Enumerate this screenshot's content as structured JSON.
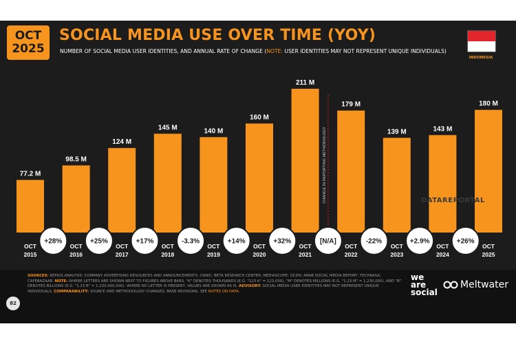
{
  "header": {
    "badge_line1": "OCT",
    "badge_line2": "2025",
    "title": "SOCIAL MEDIA USE OVER TIME (YOY)",
    "subtitle_pre": "NUMBER OF SOCIAL MEDIA USER IDENTITIES, AND ANNUAL RATE OF CHANGE (",
    "subtitle_note": "NOTE:",
    "subtitle_post": " USER IDENTITIES MAY NOT REPRESENT UNIQUE INDIVIDUALS)",
    "country": "INDONESIA"
  },
  "colors": {
    "accent": "#f7941d",
    "background": "#1c1c1c",
    "flag_red": "#e3262b"
  },
  "chart_data": {
    "type": "bar",
    "categories": [
      "OCT 2015",
      "OCT 2016",
      "OCT 2017",
      "OCT 2018",
      "OCT 2019",
      "OCT 2020",
      "OCT 2021",
      "OCT 2022",
      "OCT 2023",
      "OCT 2024",
      "OCT 2025"
    ],
    "values": [
      77.2,
      98.5,
      124,
      145,
      140,
      160,
      211,
      179,
      139,
      143,
      180
    ],
    "value_labels": [
      "77.2 M",
      "98.5 M",
      "124 M",
      "145 M",
      "140 M",
      "160 M",
      "211 M",
      "179 M",
      "139 M",
      "143 M",
      "180 M"
    ],
    "yoy_changes": [
      "+28%",
      "+25%",
      "+17%",
      "-3.3%",
      "+14%",
      "+32%",
      "[N/A]",
      "-22%",
      "+2.9%",
      "+26%"
    ],
    "ylim": [
      0,
      211
    ],
    "annotation": "CHANGE IN REPORTING METHODOLOGY",
    "grid": false,
    "legend": "none"
  },
  "watermark": "DATAREPORTAL",
  "footer": {
    "page_number": "82",
    "sources_label": "SOURCES:",
    "sources_text": " KEPIOS ANALYSIS; COMPANY ADVERTISING RESOURCES AND ANNOUNCEMENTS; CNNIC; BETA RESEARCH CENTER; MEDIASCOPE; OCDH; ARAB SOCIAL MEDIA REPORT; TECHRASA; CAFEBAZAAR.",
    "note_label": "NOTE:",
    "note_text": " WHERE LETTERS ARE SHOWN NEXT TO FIGURES ABOVE BARS, \"K\" DENOTES THOUSANDS (E.G. \"123 K\" = 123,000), \"M\" DENOTES MILLIONS (E.G. \"1.23 M\" = 1,230,000), AND \"B\" DENOTES BILLIONS (E.G. \"1.23 B\" = 1,230,000,000). WHERE NO LETTER IS PRESENT, VALUES ARE SHOWN AS IS.",
    "advisory_label": "ADVISORY:",
    "advisory_text": " SOCIAL MEDIA USER IDENTITIES MAY NOT REPRESENT UNIQUE INDIVIDUALS.",
    "comparability_label": "COMPARABILITY:",
    "comparability_text": " SOURCE AND METHODOLOGY CHANGES; BASE REVISIONS. SEE ",
    "link_text": "NOTES ON DATA",
    "end_text": ".",
    "brand1_line1": "we",
    "brand1_line2": "are",
    "brand1_line3": "social",
    "brand2": "Meltwater"
  }
}
